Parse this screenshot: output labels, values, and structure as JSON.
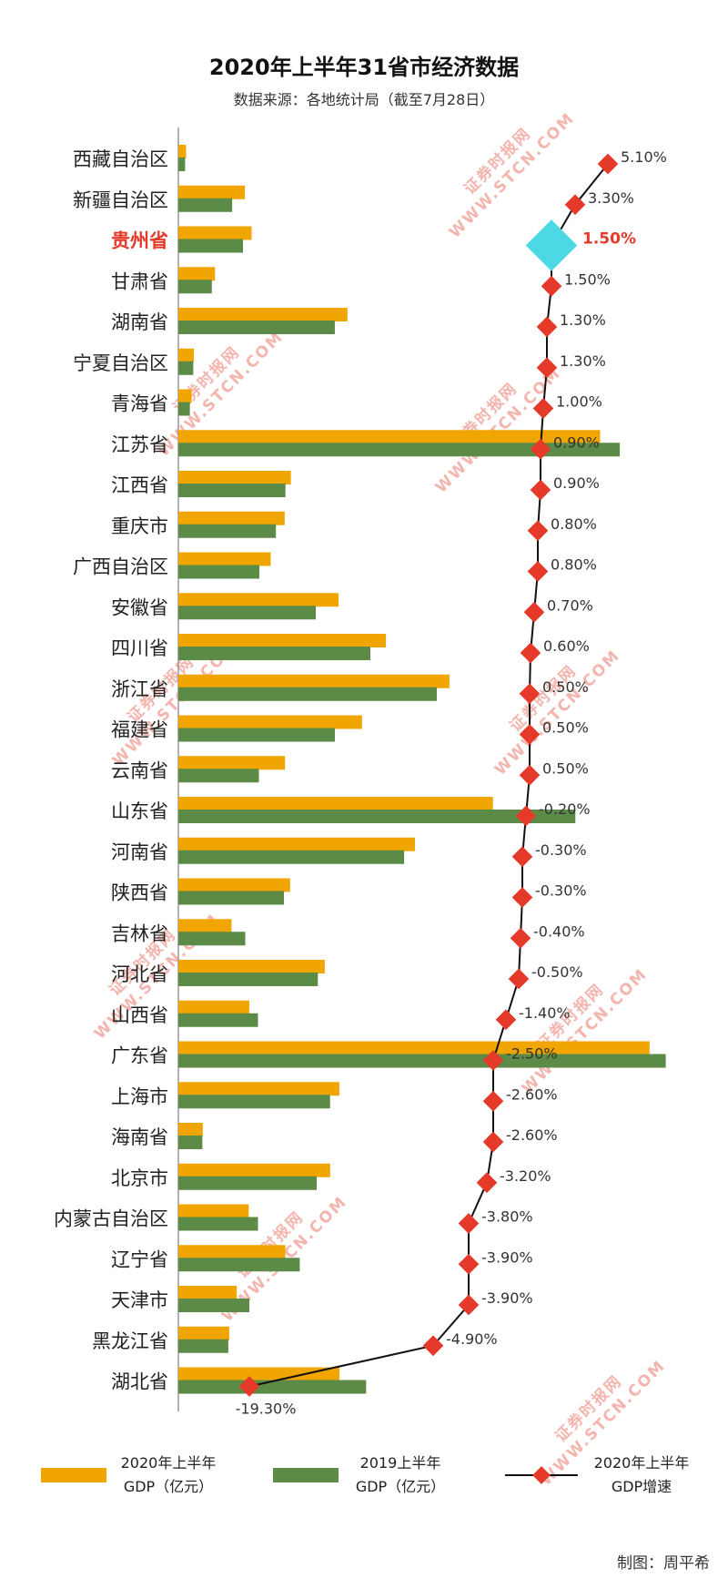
{
  "chart_data": {
    "type": "bar",
    "title": "2020年上半年31省市经济数据",
    "subtitle": "数据来源：各地统计局（截至7月28日）",
    "highlight_category": "贵州省",
    "categories": [
      "西藏自治区",
      "新疆自治区",
      "贵州省",
      "甘肃省",
      "湖南省",
      "宁夏自治区",
      "青海省",
      "江苏省",
      "江西省",
      "重庆市",
      "广西自治区",
      "安徽省",
      "四川省",
      "浙江省",
      "福建省",
      "云南省",
      "山东省",
      "河南省",
      "陕西省",
      "吉林省",
      "河北省",
      "山西省",
      "广东省",
      "上海市",
      "海南省",
      "北京市",
      "内蒙古自治区",
      "辽宁省",
      "天津市",
      "黑龙江省",
      "湖北省"
    ],
    "series": [
      {
        "name": "2020年上半年GDP（亿元）",
        "kind": "bar",
        "color": "#f0a500",
        "values": [
          849,
          7310,
          8047,
          4028,
          18580,
          1706,
          1452,
          46350,
          12365,
          11681,
          10145,
          17600,
          22810,
          29790,
          20180,
          11720,
          34570,
          26000,
          12280,
          5840,
          16090,
          7790,
          51780,
          17690,
          2680,
          16680,
          7730,
          11760,
          6420,
          5590,
          17700
        ]
      },
      {
        "name": "2019上半年GDP（亿元）",
        "kind": "bar",
        "color": "#5c8a47",
        "values": [
          743,
          5914,
          7100,
          3678,
          17195,
          1639,
          1265,
          48505,
          11770,
          10720,
          8900,
          15100,
          21100,
          28400,
          17200,
          8850,
          43625,
          24810,
          11600,
          7350,
          15330,
          8750,
          53560,
          16670,
          2635,
          15200,
          8750,
          13340,
          7800,
          5490,
          20630
        ]
      },
      {
        "name": "2020年上半年GDP增速",
        "kind": "line",
        "color": "#e53a2a",
        "line_color": "#111111",
        "labels": [
          "5.10%",
          "3.30%",
          "1.50%",
          "1.50%",
          "1.30%",
          "1.30%",
          "1.00%",
          "0.90%",
          "0.90%",
          "0.80%",
          "0.80%",
          "0.70%",
          "0.60%",
          "0.50%",
          "0.50%",
          "0.50%",
          "-0.20%",
          "-0.30%",
          "-0.30%",
          "-0.40%",
          "-0.50%",
          "-1.40%",
          "-2.50%",
          "-2.60%",
          "-2.60%",
          "-3.20%",
          "-3.80%",
          "-3.90%",
          "-3.90%",
          "-4.90%",
          "-19.30%"
        ],
        "values": [
          5.1,
          3.3,
          1.5,
          1.5,
          1.3,
          1.3,
          1.0,
          0.9,
          0.9,
          0.8,
          0.8,
          0.7,
          0.6,
          0.5,
          0.5,
          0.5,
          -0.2,
          -0.3,
          -0.3,
          -0.4,
          -0.5,
          -1.4,
          -2.5,
          -2.6,
          -2.6,
          -3.2,
          -3.8,
          -3.9,
          -3.9,
          -4.9,
          -19.3
        ]
      }
    ],
    "legend": [
      {
        "label_line1": "2020年上半年",
        "label_line2": "GDP（亿元）",
        "color": "#f0a500",
        "kind": "bar"
      },
      {
        "label_line1": "2019上半年",
        "label_line2": "GDP（亿元）",
        "color": "#5c8a47",
        "kind": "bar"
      },
      {
        "label_line1": "2020年上半年",
        "label_line2": "GDP增速",
        "color": "#e53a2a",
        "kind": "line"
      }
    ],
    "legend_position": "bottom",
    "grid": false,
    "credit": "制图：周平希"
  },
  "watermark": {
    "line1": "证券时报网",
    "line2": "WWW.STCN.COM"
  }
}
